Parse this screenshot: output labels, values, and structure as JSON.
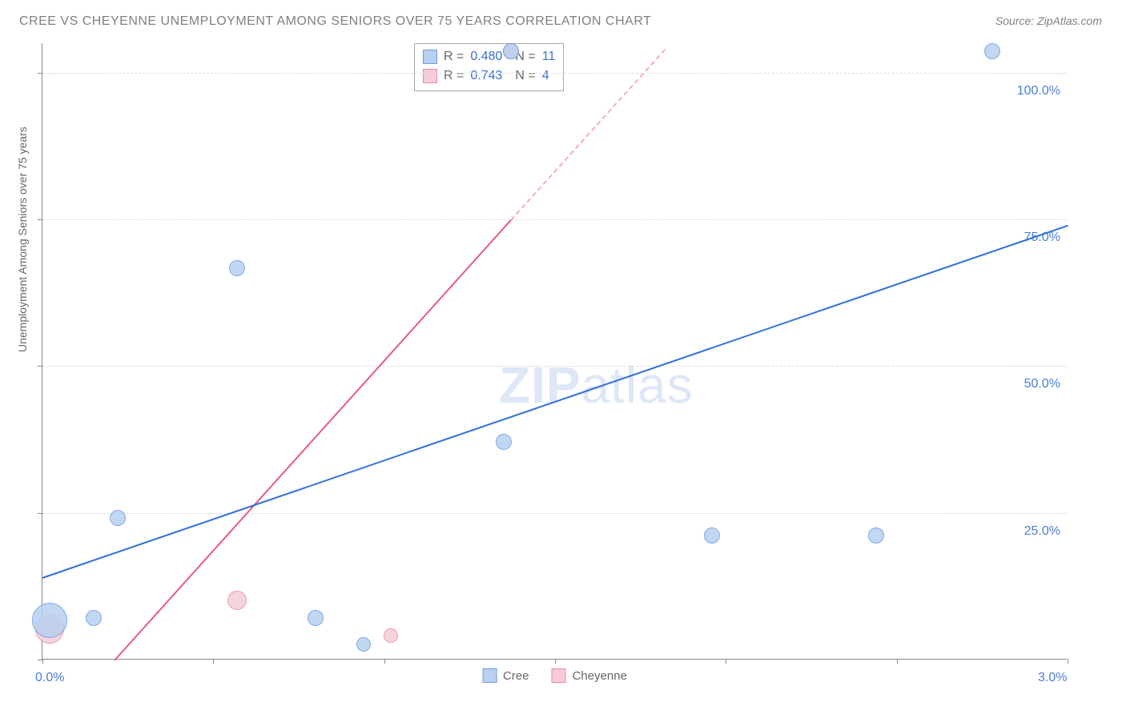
{
  "title": "CREE VS CHEYENNE UNEMPLOYMENT AMONG SENIORS OVER 75 YEARS CORRELATION CHART",
  "source": "Source: ZipAtlas.com",
  "ylabel": "Unemployment Among Seniors over 75 years",
  "watermark": {
    "zip": "ZIP",
    "atlas": "atlas"
  },
  "chart": {
    "type": "scatter-correlation",
    "background_color": "#ffffff",
    "grid_color": "#dddddd",
    "axis_color": "#888888",
    "label_color": "#4a7fd6",
    "xlim": [
      0.0,
      3.0
    ],
    "ylim": [
      0.0,
      105.0
    ],
    "xtick_positions": [
      0.0,
      0.5,
      1.0,
      1.5,
      2.0,
      2.5,
      3.0
    ],
    "xtick_labels": {
      "0": "0.0%",
      "6": "3.0%"
    },
    "ytick_positions": [
      25.0,
      50.0,
      75.0,
      100.0
    ],
    "ytick_labels": [
      "25.0%",
      "50.0%",
      "75.0%",
      "100.0%"
    ],
    "ytick_minor": [
      0,
      25,
      50,
      75,
      100
    ]
  },
  "series": {
    "cree": {
      "label": "Cree",
      "point_fill": "#b8d1f0",
      "point_stroke": "#6b9be0",
      "line_color": "#2e6fdc",
      "R": "0.480",
      "N": "11",
      "points": [
        {
          "x": 0.02,
          "y": 6.5,
          "r": 22
        },
        {
          "x": 0.15,
          "y": 7.0,
          "r": 10
        },
        {
          "x": 0.22,
          "y": 24.0,
          "r": 10
        },
        {
          "x": 0.57,
          "y": 66.5,
          "r": 10
        },
        {
          "x": 0.8,
          "y": 7.0,
          "r": 10
        },
        {
          "x": 0.94,
          "y": 2.5,
          "r": 9
        },
        {
          "x": 1.35,
          "y": 37.0,
          "r": 10
        },
        {
          "x": 1.37,
          "y": 103.5,
          "r": 10
        },
        {
          "x": 1.96,
          "y": 21.0,
          "r": 10
        },
        {
          "x": 2.44,
          "y": 21.0,
          "r": 10
        },
        {
          "x": 2.78,
          "y": 103.5,
          "r": 10
        }
      ],
      "trend": {
        "x1": 0.0,
        "y1": 14.0,
        "x2": 3.0,
        "y2": 74.0
      }
    },
    "cheyenne": {
      "label": "Cheyenne",
      "point_fill": "#f6cdd7",
      "point_stroke": "#e98ba3",
      "line_color": "#e45c80",
      "R": "0.743",
      "N": "4",
      "points": [
        {
          "x": 0.02,
          "y": 5.0,
          "r": 18
        },
        {
          "x": 0.57,
          "y": 10.0,
          "r": 12
        },
        {
          "x": 1.02,
          "y": 4.0,
          "r": 9
        },
        {
          "x": 1.37,
          "y": 103.5,
          "r": 10
        }
      ],
      "trend_solid": {
        "x1": 0.21,
        "y1": 0.0,
        "x2": 1.37,
        "y2": 75.0
      },
      "trend_dash": {
        "x1": 1.37,
        "y1": 75.0,
        "x2": 1.82,
        "y2": 104.0
      }
    }
  },
  "stats_labels": {
    "R": "R =",
    "N": "N ="
  },
  "legend": {
    "cree": "Cree",
    "cheyenne": "Cheyenne"
  }
}
